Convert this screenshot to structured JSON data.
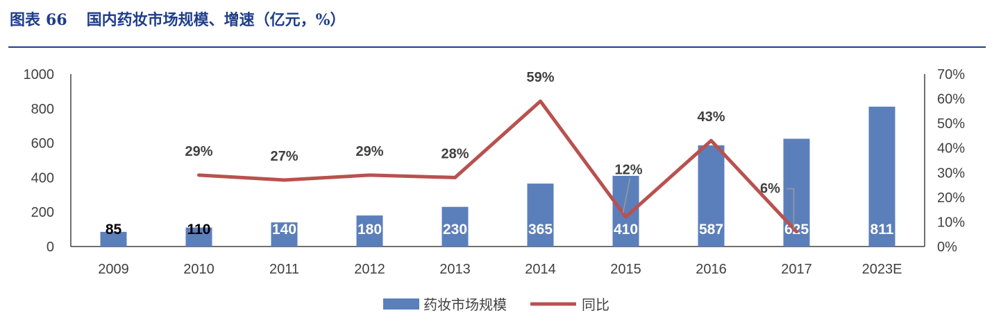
{
  "header": {
    "fig_label": "图表",
    "fig_number": "66",
    "fig_title": "国内药妆市场规模、增速（亿元，%）"
  },
  "chart_data": {
    "type": "bar",
    "categories": [
      "2009",
      "2010",
      "2011",
      "2012",
      "2013",
      "2014",
      "2015",
      "2016",
      "2017",
      "2023E"
    ],
    "series": [
      {
        "name": "药妆市场规模",
        "type": "bar",
        "axis": "left",
        "values": [
          85,
          110,
          140,
          180,
          230,
          365,
          410,
          587,
          625,
          811
        ],
        "labels": [
          "85",
          "110",
          "140",
          "180",
          "230",
          "365",
          "410",
          "587",
          "625",
          "811"
        ],
        "color": "#5b7fbb"
      },
      {
        "name": "同比",
        "type": "line",
        "axis": "right",
        "values": [
          null,
          29,
          27,
          29,
          28,
          59,
          12,
          43,
          6,
          null
        ],
        "labels": [
          "",
          "29%",
          "27%",
          "29%",
          "28%",
          "59%",
          "12%",
          "43%",
          "6%",
          ""
        ],
        "color": "#b9514e"
      }
    ],
    "y_left": {
      "min": 0,
      "max": 1000,
      "ticks": [
        "0",
        "200",
        "400",
        "600",
        "800",
        "1000"
      ]
    },
    "y_right": {
      "min": 0,
      "max": 70,
      "ticks": [
        "0%",
        "10%",
        "20%",
        "30%",
        "40%",
        "50%",
        "60%",
        "70%"
      ]
    },
    "legend_position": "bottom",
    "grid": false
  }
}
